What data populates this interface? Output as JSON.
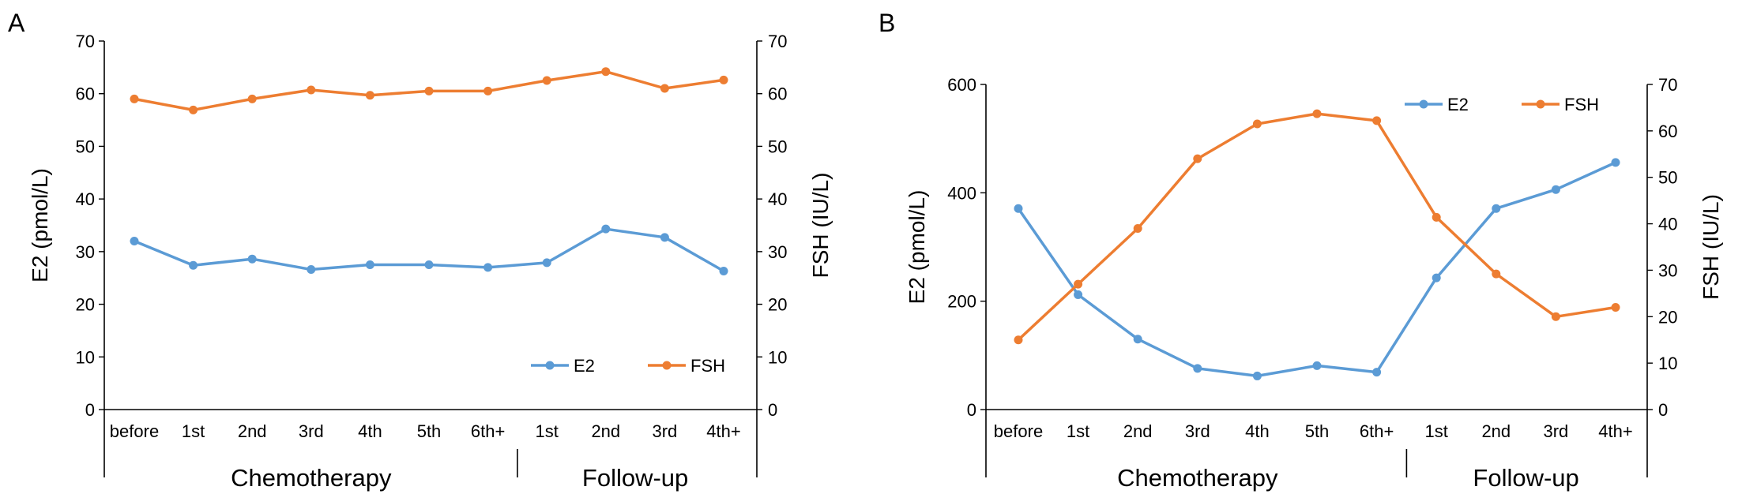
{
  "chart_data": [
    {
      "panel": "A",
      "type": "line",
      "categories": [
        "before",
        "1st",
        "2nd",
        "3rd",
        "4th",
        "5th",
        "6th+",
        "1st",
        "2nd",
        "3rd",
        "4th+"
      ],
      "groups": [
        {
          "label": "Chemotherapy",
          "start": 0,
          "end": 6
        },
        {
          "label": "Follow-up",
          "start": 7,
          "end": 10
        }
      ],
      "ylabel": "E2 (pmol/L)",
      "ylim": [
        0,
        70
      ],
      "yticks": [
        0,
        10,
        20,
        30,
        40,
        50,
        60,
        70
      ],
      "y2label": "FSH (IU/L)",
      "y2lim": [
        0,
        70
      ],
      "y2ticks": [
        0,
        10,
        20,
        30,
        40,
        50,
        60,
        70
      ],
      "legend_position": "bottom-right",
      "series": [
        {
          "name": "E2",
          "axis": "left",
          "color": "#5B9BD5",
          "values": [
            32,
            27.4,
            28.6,
            26.6,
            27.5,
            27.5,
            27.0,
            27.9,
            34.3,
            32.7,
            26.3
          ]
        },
        {
          "name": "FSH",
          "axis": "right",
          "color": "#ED7D31",
          "values": [
            59,
            56.9,
            59,
            60.7,
            59.7,
            60.5,
            60.5,
            62.5,
            64.2,
            61,
            62.6
          ]
        }
      ]
    },
    {
      "panel": "B",
      "type": "line",
      "categories": [
        "before",
        "1st",
        "2nd",
        "3rd",
        "4th",
        "5th",
        "6th+",
        "1st",
        "2nd",
        "3rd",
        "4th+"
      ],
      "groups": [
        {
          "label": "Chemotherapy",
          "start": 0,
          "end": 6
        },
        {
          "label": "Follow-up",
          "start": 7,
          "end": 10
        }
      ],
      "ylabel": "E2 (pmol/L)",
      "ylim": [
        0,
        600
      ],
      "yticks": [
        0,
        200,
        400,
        600
      ],
      "y2label": "FSH (IU/L)",
      "y2lim": [
        0,
        70
      ],
      "y2ticks": [
        0,
        10,
        20,
        30,
        40,
        50,
        60,
        70
      ],
      "legend_position": "top-right",
      "series": [
        {
          "name": "E2",
          "axis": "left",
          "color": "#5B9BD5",
          "values": [
            371,
            212,
            130,
            76,
            62,
            81,
            69,
            243,
            371,
            406,
            456
          ]
        },
        {
          "name": "FSH",
          "axis": "right",
          "color": "#ED7D31",
          "values": [
            15,
            27,
            39,
            54,
            61.5,
            63.7,
            62.2,
            41.4,
            29.2,
            20,
            22
          ]
        }
      ]
    }
  ]
}
